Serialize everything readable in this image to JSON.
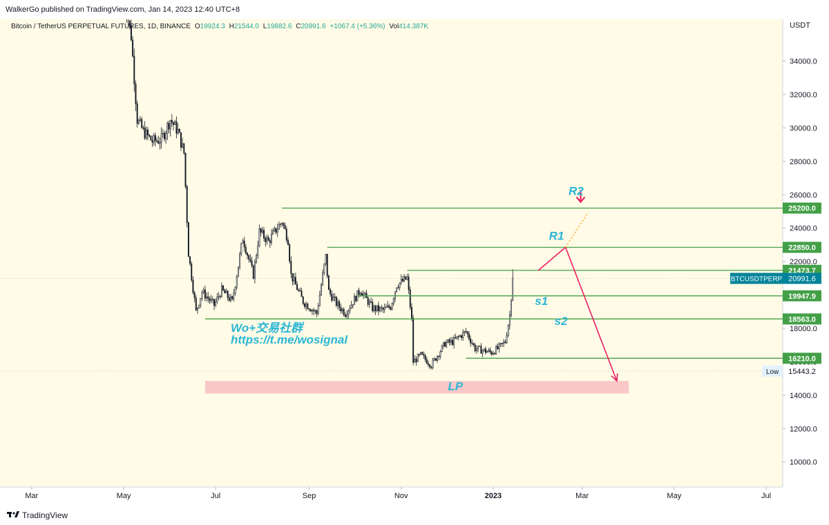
{
  "header": {
    "published": "WalkerGo published on TradingView.com, Jan 14, 2023 12:40 UTC+8"
  },
  "legend": {
    "symbol": "Bitcoin / TetherUS PERPETUAL FUTURES, 1D, BINANCE",
    "o_label": "O",
    "o_value": "19924.3",
    "h_label": "H",
    "h_value": "21544.0",
    "l_label": "L",
    "l_value": "19882.6",
    "c_label": "C",
    "c_value": "20991.6",
    "change": "+1067.4 (+5.36%)",
    "vol_label": "Vol",
    "vol_value": "414.387K"
  },
  "footer": {
    "brand": "TradingView",
    "logo_icon": "tradingview-logo-icon"
  },
  "colors": {
    "plot_bg": "#fffbe6",
    "candle": "#131722",
    "level_line": "#43a047",
    "level_label_bg": "#43a047",
    "annotation_text": "#29b6d6",
    "projection_arrow": "#e91e63",
    "lp_zone": "#f8c8c8",
    "price_label_bg": "#00839a"
  },
  "chart_data": {
    "type": "candlestick",
    "title": "Bitcoin / TetherUS PERPETUAL FUTURES, 1D, BINANCE",
    "y_axis_unit": "USDT",
    "ylim": [
      8500,
      36500
    ],
    "y_ticks": [
      "34000.0",
      "32000.0",
      "30000.0",
      "28000.0",
      "26000.0",
      "24000.0",
      "22000.0",
      "20000.0",
      "18000.0",
      "16000.0",
      "14000.0",
      "12000.0",
      "10000.0"
    ],
    "x_ticks": [
      "Mar",
      "May",
      "Jul",
      "Sep",
      "Nov",
      "2023",
      "Mar",
      "May",
      "Jul"
    ],
    "close_path": [
      [
        "2022-05-01",
        38000
      ],
      [
        "2022-05-06",
        35500
      ],
      [
        "2022-05-10",
        30500
      ],
      [
        "2022-05-14",
        29800
      ],
      [
        "2022-05-20",
        29200
      ],
      [
        "2022-05-26",
        29300
      ],
      [
        "2022-06-01",
        30500
      ],
      [
        "2022-06-06",
        29800
      ],
      [
        "2022-06-10",
        28500
      ],
      [
        "2022-06-13",
        22500
      ],
      [
        "2022-06-18",
        19000
      ],
      [
        "2022-06-22",
        20200
      ],
      [
        "2022-06-30",
        19400
      ],
      [
        "2022-07-05",
        20300
      ],
      [
        "2022-07-12",
        19600
      ],
      [
        "2022-07-19",
        23400
      ],
      [
        "2022-07-26",
        21200
      ],
      [
        "2022-07-30",
        23800
      ],
      [
        "2022-08-05",
        23200
      ],
      [
        "2022-08-10",
        23900
      ],
      [
        "2022-08-14",
        24400
      ],
      [
        "2022-08-18",
        23300
      ],
      [
        "2022-08-20",
        21200
      ],
      [
        "2022-08-28",
        19600
      ],
      [
        "2022-09-06",
        18900
      ],
      [
        "2022-09-12",
        22300
      ],
      [
        "2022-09-14",
        20200
      ],
      [
        "2022-09-19",
        19500
      ],
      [
        "2022-09-25",
        18900
      ],
      [
        "2022-10-05",
        20300
      ],
      [
        "2022-10-13",
        19200
      ],
      [
        "2022-10-20",
        19100
      ],
      [
        "2022-10-25",
        19300
      ],
      [
        "2022-10-29",
        20600
      ],
      [
        "2022-11-05",
        21000
      ],
      [
        "2022-11-08",
        18500
      ],
      [
        "2022-11-09",
        16000
      ],
      [
        "2022-11-14",
        16400
      ],
      [
        "2022-11-21",
        15800
      ],
      [
        "2022-11-30",
        17100
      ],
      [
        "2022-12-05",
        17200
      ],
      [
        "2022-12-14",
        17800
      ],
      [
        "2022-12-20",
        16800
      ],
      [
        "2022-12-31",
        16550
      ],
      [
        "2023-01-05",
        16850
      ],
      [
        "2023-01-09",
        17200
      ],
      [
        "2023-01-12",
        18800
      ],
      [
        "2023-01-13",
        19900
      ],
      [
        "2023-01-14",
        20991.6
      ]
    ],
    "x_range": [
      "2022-02-08",
      "2023-07-12"
    ],
    "levels": [
      {
        "label": "25200.0",
        "value": 25200,
        "from": "2022-08-14"
      },
      {
        "label": "22850.0",
        "value": 22850,
        "from": "2022-09-13"
      },
      {
        "label": "21473.7",
        "value": 21473.7,
        "from": "2022-11-05"
      },
      {
        "label": "19947.9",
        "value": 19947.9,
        "from": "2022-10-03"
      },
      {
        "label": "18563.0",
        "value": 18563,
        "from": "2022-06-24"
      },
      {
        "label": "16210.0",
        "value": 16210,
        "from": "2022-12-14"
      }
    ],
    "annotations": [
      {
        "text": "R2",
        "x": "2023-02-25",
        "y": 26000
      },
      {
        "text": "R1",
        "x": "2023-02-12",
        "y": 23300
      },
      {
        "text": "s1",
        "x": "2023-02-02",
        "y": 19400
      },
      {
        "text": "s2",
        "x": "2023-02-15",
        "y": 18200
      },
      {
        "text": "LP",
        "x": "2022-12-07",
        "y": 14300
      }
    ],
    "watermark": [
      "Wo+交易社群",
      "https://t.me/wosignal"
    ],
    "lp_zone": {
      "label": "LP",
      "from": "2022-06-24",
      "to": "2023-04-01",
      "low": 14100,
      "high": 14850
    },
    "projection": [
      [
        "2023-01-31",
        21473.7
      ],
      [
        "2023-02-18",
        22850
      ],
      [
        "2023-03-24",
        14850
      ]
    ],
    "projection_dotted": [
      [
        "2023-02-18",
        22850
      ],
      [
        "2023-03-05",
        24950
      ]
    ],
    "down_arrow_at": [
      "2023-02-28",
      25900
    ],
    "current_price": {
      "symbol": "BTCUSDTPERP",
      "value": "20991.6"
    },
    "low_marker": {
      "label": "Low",
      "value": "15443.2"
    }
  }
}
